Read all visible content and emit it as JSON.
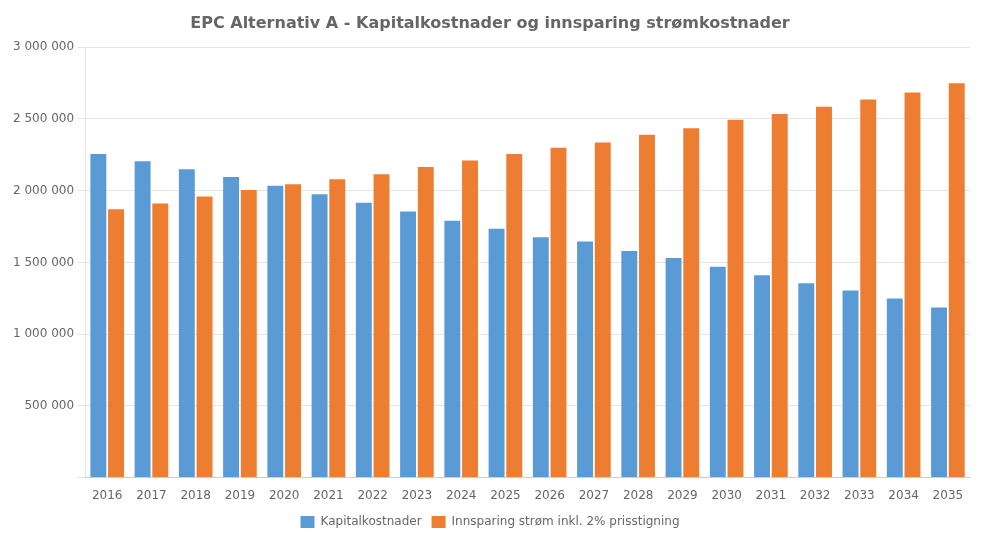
{
  "chart_data": {
    "type": "bar",
    "title": "EPC Alternativ A - Kapitalkostnader og innsparing strømkostnader",
    "categories": [
      "2016",
      "2017",
      "2018",
      "2019",
      "2020",
      "2021",
      "2022",
      "2023",
      "2024",
      "2025",
      "2026",
      "2027",
      "2028",
      "2029",
      "2030",
      "2031",
      "2032",
      "2033",
      "2034",
      "2035"
    ],
    "series": [
      {
        "name": "Kapitalkostnader",
        "color": "#5B9BD5",
        "values": [
          2255000,
          2205000,
          2150000,
          2095000,
          2035000,
          1975000,
          1915000,
          1855000,
          1790000,
          1735000,
          1675000,
          1645000,
          1580000,
          1530000,
          1470000,
          1410000,
          1355000,
          1305000,
          1248000,
          1185000
        ]
      },
      {
        "name": "Innsparing strøm inkl. 2% prisstigning",
        "color": "#ED7D31",
        "values": [
          1870000,
          1910000,
          1960000,
          2005000,
          2045000,
          2080000,
          2115000,
          2165000,
          2210000,
          2255000,
          2300000,
          2335000,
          2390000,
          2435000,
          2495000,
          2535000,
          2585000,
          2635000,
          2685000,
          2748000
        ]
      }
    ],
    "ylim": [
      0,
      3000000
    ],
    "yticks": [
      {
        "value": 0,
        "label": ""
      },
      {
        "value": 500000,
        "label": "500 000"
      },
      {
        "value": 1000000,
        "label": "1 000 000"
      },
      {
        "value": 1500000,
        "label": "1 500 000"
      },
      {
        "value": 2000000,
        "label": "2 000 000"
      },
      {
        "value": 2500000,
        "label": "2 500 000"
      },
      {
        "value": 3000000,
        "label": "3 000 000"
      }
    ],
    "grid": true,
    "legend": "bottom"
  }
}
